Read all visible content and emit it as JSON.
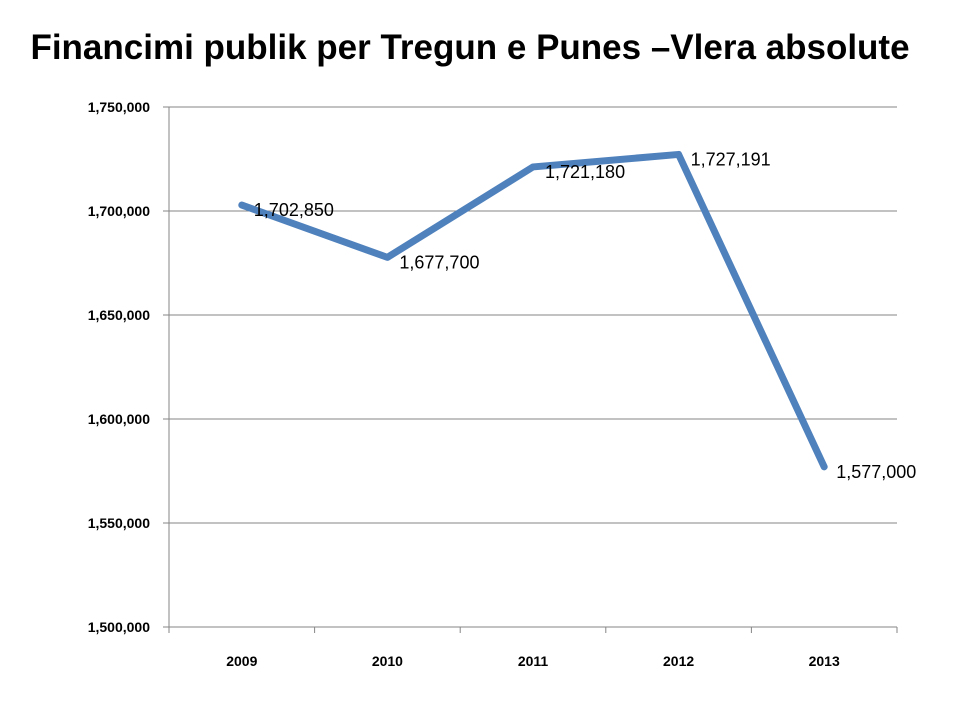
{
  "chart_data": {
    "type": "line",
    "title": "Financimi publik per Tregun e Punes –Vlera absolute",
    "categories": [
      "2009",
      "2010",
      "2011",
      "2012",
      "2013"
    ],
    "values": [
      1702850,
      1677700,
      1721180,
      1727191,
      1577000
    ],
    "data_labels": [
      "1,702,850",
      "1,677,700",
      "1,721,180",
      "1,727,191",
      "1,577,000"
    ],
    "yticks": [
      1500000,
      1550000,
      1600000,
      1650000,
      1700000,
      1750000
    ],
    "ytick_labels": [
      "1,500,000",
      "1,550,000",
      "1,600,000",
      "1,650,000",
      "1,700,000",
      "1,750,000"
    ],
    "ylim": [
      1500000,
      1750000
    ],
    "grid": true,
    "legend": "none",
    "xlabel": "",
    "ylabel": "",
    "line_color": "#4F81BD"
  }
}
